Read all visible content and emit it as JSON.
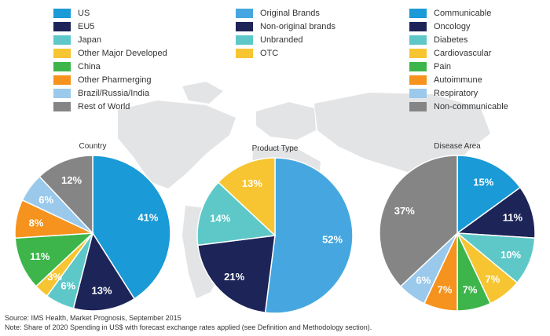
{
  "legends": [
    {
      "items": [
        {
          "label": "US",
          "color": "#1a9ad6"
        },
        {
          "label": "EU5",
          "color": "#1c2458"
        },
        {
          "label": "Japan",
          "color": "#5ec8c8"
        },
        {
          "label": "Other Major Developed",
          "color": "#f7c531"
        },
        {
          "label": "China",
          "color": "#3db54a"
        },
        {
          "label": "Other Pharmerging",
          "color": "#f5931e"
        },
        {
          "label": "Brazil/Russia/India",
          "color": "#9ac9ec"
        },
        {
          "label": "Rest of World",
          "color": "#858585"
        }
      ]
    },
    {
      "items": [
        {
          "label": "Original Brands",
          "color": "#46a7e0"
        },
        {
          "label": "Non-original brands",
          "color": "#1c2458"
        },
        {
          "label": "Unbranded",
          "color": "#5ec8c8"
        },
        {
          "label": "OTC",
          "color": "#f7c531"
        }
      ]
    },
    {
      "items": [
        {
          "label": "Communicable",
          "color": "#1a9ad6"
        },
        {
          "label": "Oncology",
          "color": "#1c2458"
        },
        {
          "label": "Diabetes",
          "color": "#5ec8c8"
        },
        {
          "label": "Cardiovascular",
          "color": "#f7c531"
        },
        {
          "label": "Pain",
          "color": "#3db54a"
        },
        {
          "label": "Autoimmune",
          "color": "#f5931e"
        },
        {
          "label": "Respiratory",
          "color": "#9ac9ec"
        },
        {
          "label": "Non-communicable",
          "color": "#858585"
        }
      ]
    }
  ],
  "chart_data": [
    {
      "type": "pie",
      "title": "Country",
      "categories": [
        "US",
        "EU5",
        "Japan",
        "Other Major Developed",
        "China",
        "Other Pharmerging",
        "Brazil/Russia/India",
        "Rest of World"
      ],
      "values": [
        41,
        13,
        6,
        3,
        11,
        8,
        6,
        12
      ],
      "labels": [
        "41%",
        "13%",
        "6%",
        "3%",
        "11%",
        "8%",
        "6%",
        "12%"
      ],
      "colors": [
        "#1a9ad6",
        "#1c2458",
        "#5ec8c8",
        "#f7c531",
        "#3db54a",
        "#f5931e",
        "#9ac9ec",
        "#858585"
      ]
    },
    {
      "type": "pie",
      "title": "Product Type",
      "categories": [
        "Original Brands",
        "Non-original brands",
        "Unbranded",
        "OTC"
      ],
      "values": [
        52,
        21,
        14,
        13
      ],
      "labels": [
        "52%",
        "21%",
        "14%",
        "13%"
      ],
      "colors": [
        "#46a7e0",
        "#1c2458",
        "#5ec8c8",
        "#f7c531"
      ]
    },
    {
      "type": "pie",
      "title": "Disease Area",
      "categories": [
        "Communicable",
        "Oncology",
        "Diabetes",
        "Cardiovascular",
        "Pain",
        "Autoimmune",
        "Respiratory",
        "Non-communicable"
      ],
      "values": [
        15,
        11,
        10,
        7,
        7,
        7,
        6,
        37
      ],
      "labels": [
        "15%",
        "11%",
        "10%",
        "7%",
        "7%",
        "7%",
        "6%",
        "37%"
      ],
      "colors": [
        "#1a9ad6",
        "#1c2458",
        "#5ec8c8",
        "#f7c531",
        "#3db54a",
        "#f5931e",
        "#9ac9ec",
        "#858585"
      ]
    }
  ],
  "footnotes": {
    "source": "Source: IMS Health, Market Prognosis, September 2015",
    "note": "Note: Share of 2020 Spending in US$ with forecast exchange rates applied (see Definition and Methodology section)."
  }
}
